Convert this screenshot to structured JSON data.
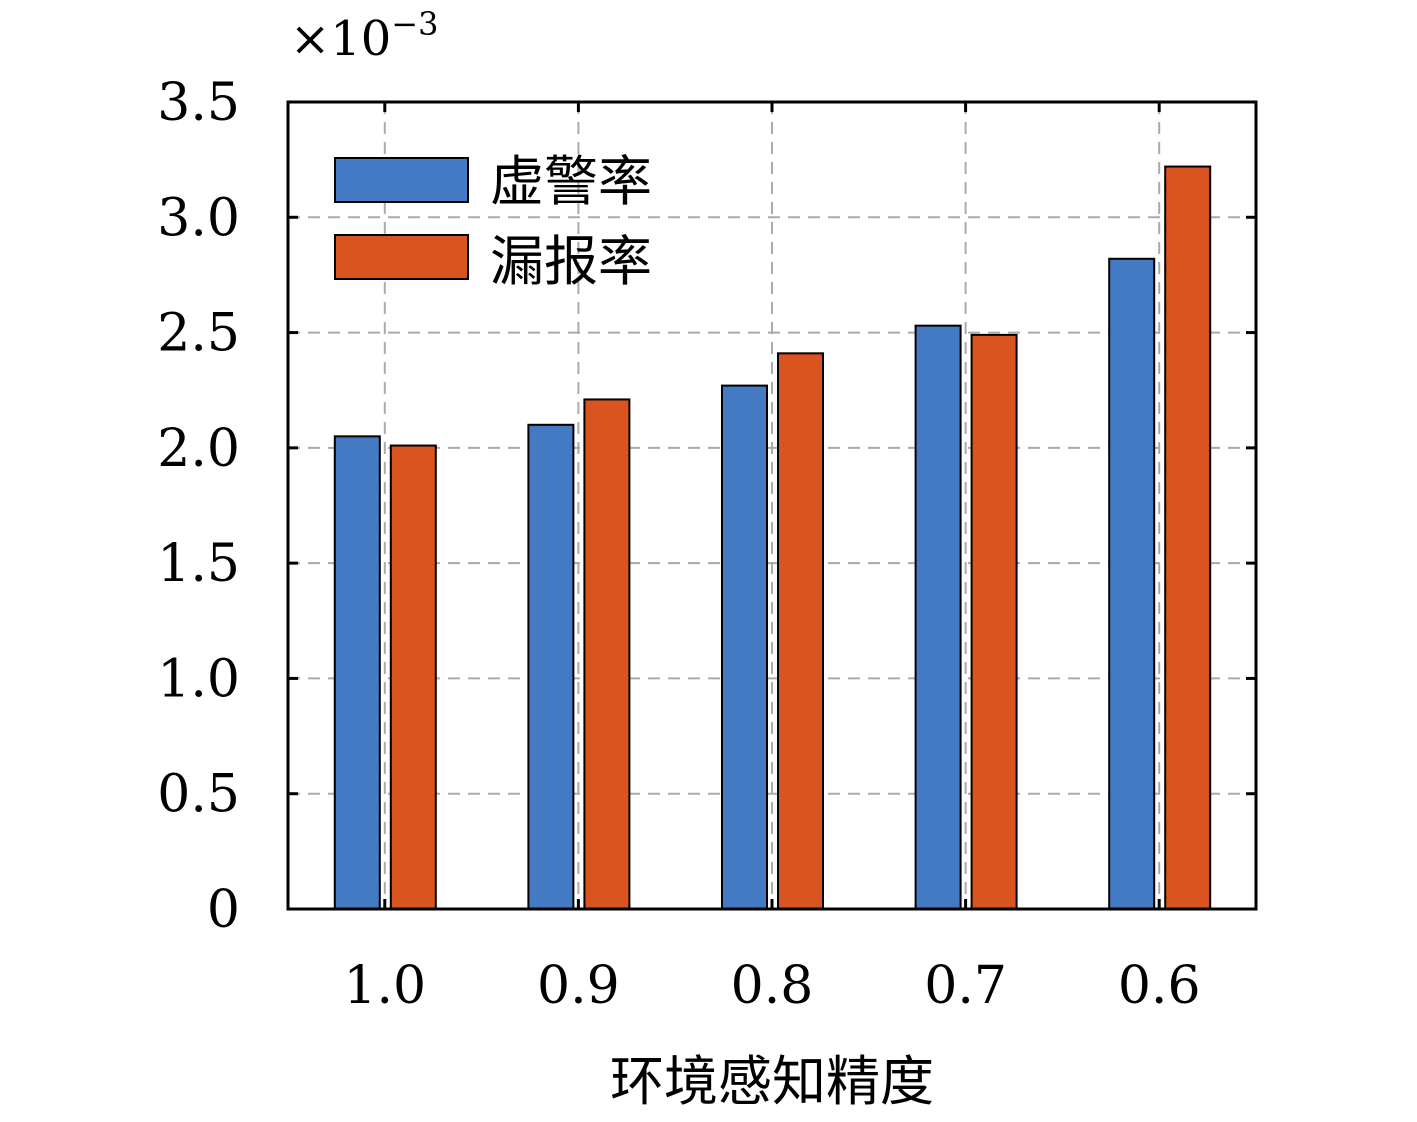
{
  "chart_data": {
    "type": "bar",
    "title": "",
    "xlabel": "环境感知精度",
    "ylabel": "",
    "y_scale_label": {
      "base": "×10",
      "exponent": "−3"
    },
    "categories": [
      "1.0",
      "0.9",
      "0.8",
      "0.7",
      "0.6"
    ],
    "series": [
      {
        "name": "虚警率",
        "color": "#4479C4",
        "values": [
          2.05,
          2.1,
          2.27,
          2.53,
          2.82
        ]
      },
      {
        "name": "漏报率",
        "color": "#D9541E",
        "values": [
          2.01,
          2.21,
          2.41,
          2.49,
          3.22
        ]
      }
    ],
    "ylim": [
      0,
      3.5
    ],
    "yticks": [
      "0",
      "0.5",
      "1.0",
      "1.5",
      "2.0",
      "2.5",
      "3.0",
      "3.5"
    ],
    "ytick_values": [
      0,
      0.5,
      1.0,
      1.5,
      2.0,
      2.5,
      3.0,
      3.5
    ],
    "grid": true,
    "legend_position": "top-left"
  }
}
